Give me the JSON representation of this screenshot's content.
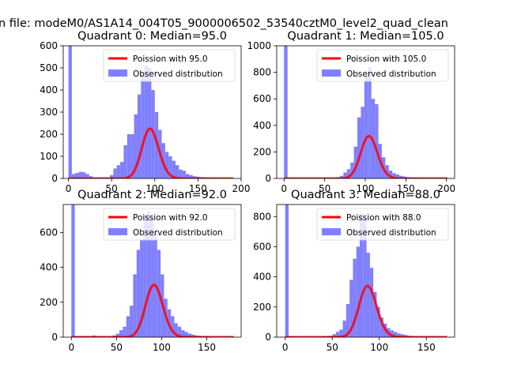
{
  "figure": {
    "suptitle": "n file: modeM0/AS1A14_004T05_9000006502_53540cztM0_level2_quad_clean"
  },
  "colors": {
    "histogram": "#8080ff",
    "poisson": "#ff0000",
    "axes": "#000000",
    "background": "#ffffff"
  },
  "chart_data": [
    {
      "type": "bar",
      "title": "Quadrant 0: Median=95.0",
      "xlim": [
        -6,
        200
      ],
      "ylim": [
        0,
        600
      ],
      "xticks": [
        0,
        50,
        100,
        150,
        200
      ],
      "xtick_labels": [
        "0",
        "50",
        "100",
        "150",
        "200"
      ],
      "yticks": [
        0,
        100,
        200,
        300,
        400,
        500,
        600
      ],
      "ytick_labels": [
        "0",
        "100",
        "200",
        "300",
        "400",
        "500",
        "600"
      ],
      "legend": [
        "Poission with 95.0",
        "Observed distribution"
      ],
      "legend_position": "upper right",
      "poisson_mean": 95.0,
      "poisson_scale": 5500,
      "bin_width": 4,
      "bins_start": [
        0,
        4,
        8,
        12,
        16,
        20,
        24,
        28,
        32,
        36,
        40,
        44,
        48,
        52,
        56,
        60,
        64,
        68,
        72,
        76,
        80,
        84,
        88,
        92,
        96,
        100,
        104,
        108,
        112,
        116,
        120,
        124,
        128,
        132,
        136,
        140,
        144,
        148,
        152,
        156,
        160,
        164,
        168,
        172,
        176,
        180,
        184,
        188
      ],
      "counts": [
        600,
        20,
        25,
        30,
        28,
        20,
        10,
        5,
        3,
        3,
        3,
        5,
        15,
        45,
        60,
        75,
        150,
        200,
        200,
        290,
        380,
        480,
        510,
        500,
        400,
        300,
        220,
        160,
        120,
        100,
        80,
        60,
        40,
        35,
        20,
        15,
        10,
        8,
        6,
        5,
        3,
        2,
        2,
        1,
        1,
        1,
        0,
        0
      ]
    },
    {
      "type": "bar",
      "title": "Quadrant 1: Median=105.0",
      "xlim": [
        -9,
        210
      ],
      "ylim": [
        0,
        1000
      ],
      "xticks": [
        0,
        50,
        100,
        150,
        200
      ],
      "xtick_labels": [
        "0",
        "50",
        "100",
        "150",
        "200"
      ],
      "yticks": [
        0,
        200,
        400,
        600,
        800,
        1000
      ],
      "ytick_labels": [
        "0",
        "200",
        "400",
        "600",
        "800",
        "1000"
      ],
      "legend": [
        "Poission with 105.0",
        "Observed distribution"
      ],
      "legend_position": "upper right",
      "poisson_mean": 105.0,
      "poisson_scale": 8200,
      "bin_width": 4.3,
      "bins_start": [
        0,
        4.3,
        8.6,
        12.9,
        17.2,
        21.5,
        25.8,
        30.1,
        34.4,
        38.7,
        43,
        47.3,
        51.6,
        55.9,
        60.2,
        64.5,
        68.8,
        73.1,
        77.4,
        81.7,
        86,
        90.3,
        94.6,
        98.9,
        103.2,
        107.5,
        111.8,
        116.1,
        120.4,
        124.7,
        129,
        133.3,
        137.6,
        141.9,
        146.2,
        150.5,
        154.8,
        159.1,
        163.4,
        167.7,
        172,
        176.3,
        180.6,
        184.9,
        189.2,
        193.5,
        197.8,
        202.1
      ],
      "counts": [
        1000,
        5,
        3,
        3,
        2,
        2,
        2,
        2,
        2,
        2,
        2,
        2,
        2,
        3,
        5,
        10,
        20,
        45,
        70,
        120,
        240,
        460,
        540,
        780,
        840,
        600,
        560,
        260,
        160,
        100,
        60,
        40,
        30,
        20,
        15,
        10,
        8,
        5,
        4,
        3,
        2,
        2,
        1,
        1,
        1,
        0,
        0,
        0
      ]
    },
    {
      "type": "bar",
      "title": "Quadrant 2: Median=92.0",
      "xlim": [
        -9,
        188
      ],
      "ylim": [
        0,
        760
      ],
      "xticks": [
        0,
        50,
        100,
        150
      ],
      "xtick_labels": [
        "0",
        "50",
        "100",
        "150"
      ],
      "yticks": [
        0,
        200,
        400,
        600
      ],
      "ytick_labels": [
        "0",
        "200",
        "400",
        "600"
      ],
      "legend": [
        "Poission with 92.0",
        "Observed distribution"
      ],
      "legend_position": "upper right",
      "poisson_mean": 92.0,
      "poisson_scale": 7200,
      "bin_width": 3.8,
      "bins_start": [
        0,
        3.8,
        7.6,
        11.4,
        15.2,
        19,
        22.8,
        26.6,
        30.4,
        34.2,
        38,
        41.8,
        45.6,
        49.4,
        53.2,
        57,
        60.8,
        64.6,
        68.4,
        72.2,
        76,
        79.8,
        83.6,
        87.4,
        91.2,
        95,
        98.8,
        102.6,
        106.4,
        110.2,
        114,
        117.8,
        121.6,
        125.4,
        129.2,
        133,
        136.8,
        140.6,
        144.4,
        148.2,
        152,
        155.8,
        159.6,
        163.4,
        167.2,
        171,
        174.8,
        178.6
      ],
      "counts": [
        760,
        5,
        5,
        5,
        3,
        3,
        10,
        5,
        3,
        3,
        3,
        5,
        10,
        20,
        40,
        60,
        120,
        180,
        360,
        500,
        560,
        700,
        720,
        700,
        600,
        500,
        360,
        220,
        160,
        120,
        80,
        60,
        40,
        30,
        20,
        15,
        10,
        8,
        6,
        5,
        3,
        2,
        2,
        1,
        1,
        0,
        0,
        0
      ]
    },
    {
      "type": "bar",
      "title": "Quadrant 3: Median=88.0",
      "xlim": [
        -9,
        180
      ],
      "ylim": [
        0,
        880
      ],
      "xticks": [
        0,
        50,
        100,
        150
      ],
      "xtick_labels": [
        "0",
        "50",
        "100",
        "150"
      ],
      "yticks": [
        0,
        200,
        400,
        600,
        800
      ],
      "ytick_labels": [
        "0",
        "200",
        "400",
        "600",
        "800"
      ],
      "legend": [
        "Poission with 88.0",
        "Observed distribution"
      ],
      "legend_position": "upper right",
      "poisson_mean": 88.0,
      "poisson_scale": 8000,
      "bin_width": 3.6,
      "bins_start": [
        0,
        3.6,
        7.2,
        10.8,
        14.4,
        18,
        21.6,
        25.2,
        28.8,
        32.4,
        36,
        39.6,
        43.2,
        46.8,
        50.4,
        54,
        57.6,
        61.2,
        64.8,
        68.4,
        72,
        75.6,
        79.2,
        82.8,
        86.4,
        90,
        93.6,
        97.2,
        100.8,
        104.4,
        108,
        111.6,
        115.2,
        118.8,
        122.4,
        126,
        129.6,
        133.2,
        136.8,
        140.4,
        144,
        147.6,
        151.2,
        154.8,
        158.4,
        162,
        165.6,
        169.2
      ],
      "counts": [
        880,
        5,
        3,
        3,
        3,
        2,
        2,
        2,
        2,
        2,
        3,
        5,
        5,
        10,
        20,
        35,
        50,
        110,
        220,
        380,
        520,
        600,
        820,
        800,
        560,
        460,
        300,
        200,
        130,
        90,
        60,
        45,
        35,
        25,
        20,
        15,
        10,
        8,
        5,
        4,
        3,
        2,
        2,
        1,
        1,
        0,
        0,
        0
      ]
    }
  ]
}
